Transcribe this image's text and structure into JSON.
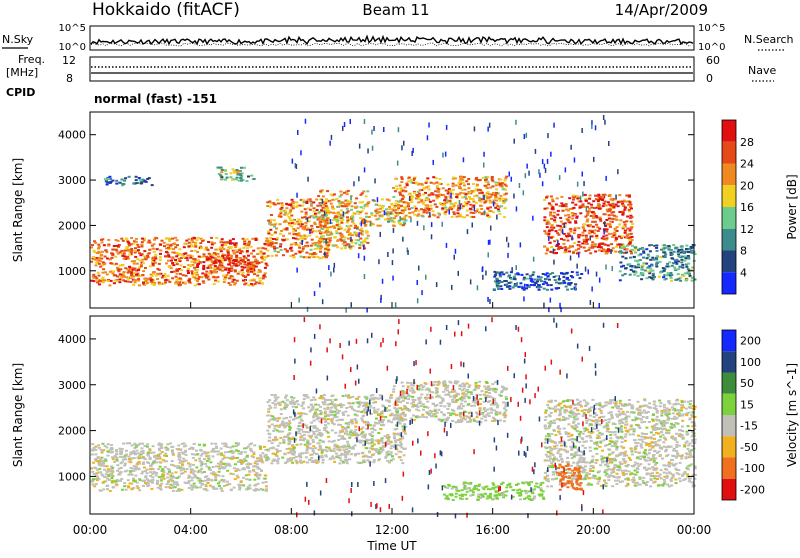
{
  "header": {
    "station": "Hokkaido (fitACF)",
    "beam": "Beam 11",
    "date": "14/Apr/2009"
  },
  "noise_panel": {
    "left_label": "N.Sky",
    "right_label": "N.Search",
    "left_ticks": [
      "10^5",
      "10^0"
    ],
    "right_ticks": [
      "10^5",
      "10^0"
    ]
  },
  "freq_panel": {
    "label_line1": "Freq.",
    "label_line2": "[MHz]",
    "left_ticks": [
      "12",
      "8"
    ],
    "right_ticks": [
      "60",
      "0"
    ],
    "right_label": "Nave",
    "freq_value_mhz": 10.0
  },
  "cpid": {
    "label": "CPID",
    "value": "normal (fast) -151"
  },
  "chart_data": [
    {
      "type": "heatmap",
      "name": "power",
      "xlabel": "",
      "ylabel": "Slant Range [km]",
      "ylim": [
        180,
        4500
      ],
      "xlim_hours": [
        0,
        24
      ],
      "yticks": [
        1000,
        2000,
        3000,
        4000
      ],
      "ytick_labels": [
        "1000",
        "2000",
        "3000",
        "4000"
      ],
      "colorbar": {
        "label": "Power [dB]",
        "ticks": [
          "4",
          "8",
          "12",
          "16",
          "20",
          "24",
          "28"
        ],
        "tick_values": [
          4,
          8,
          12,
          16,
          20,
          24,
          28
        ],
        "range": [
          0,
          30
        ],
        "colors": [
          "#1428ff",
          "#23427e",
          "#3c8c8c",
          "#6ccc8c",
          "#f0d020",
          "#f08a20",
          "#e64a18",
          "#e01010"
        ]
      },
      "regions": [
        {
          "t": [
            0.0,
            7.0
          ],
          "r": [
            700,
            1750
          ],
          "level": 24
        },
        {
          "t": [
            4.5,
            6.7
          ],
          "r": [
            1000,
            1350
          ],
          "level": 28
        },
        {
          "t": [
            7.0,
            9.5
          ],
          "r": [
            1300,
            2600
          ],
          "level": 22
        },
        {
          "t": [
            9.0,
            11.0
          ],
          "r": [
            1500,
            2800
          ],
          "level": 20
        },
        {
          "t": [
            11.0,
            12.5
          ],
          "r": [
            2000,
            2600
          ],
          "level": 18
        },
        {
          "t": [
            12.0,
            16.5
          ],
          "r": [
            2200,
            3100
          ],
          "level": 22
        },
        {
          "t": [
            0.5,
            2.5
          ],
          "r": [
            2900,
            3100
          ],
          "level": 8
        },
        {
          "t": [
            5.0,
            6.5
          ],
          "r": [
            3000,
            3300
          ],
          "level": 14
        },
        {
          "t": [
            18.0,
            21.5
          ],
          "r": [
            1400,
            2700
          ],
          "level": 26
        },
        {
          "t": [
            21.0,
            24.0
          ],
          "r": [
            800,
            1600
          ],
          "level": 10
        },
        {
          "t": [
            16.0,
            19.5
          ],
          "r": [
            600,
            1000
          ],
          "level": 6
        }
      ]
    },
    {
      "type": "heatmap",
      "name": "velocity",
      "xlabel": "Time UT",
      "ylabel": "Slant Range [km]",
      "ylim": [
        180,
        4500
      ],
      "xlim_hours": [
        0,
        24
      ],
      "yticks": [
        1000,
        2000,
        3000,
        4000
      ],
      "ytick_labels": [
        "1000",
        "2000",
        "3000",
        "4000"
      ],
      "xticks_hours": [
        0,
        4,
        8,
        12,
        16,
        20,
        24
      ],
      "xtick_labels": [
        "00:00",
        "04:00",
        "08:00",
        "12:00",
        "16:00",
        "20:00",
        "00:00"
      ],
      "colorbar": {
        "label": "Velocity [m s^-1]",
        "ticks": [
          "200",
          "100",
          "50",
          "15",
          "-15",
          "-50",
          "-100",
          "-200"
        ],
        "tick_values": [
          200,
          100,
          50,
          15,
          -15,
          -50,
          -100,
          -200
        ],
        "colors": [
          "#1428ff",
          "#23427e",
          "#3c8c3c",
          "#7cd23c",
          "#c0c0b8",
          "#f0b020",
          "#f07020",
          "#e01010"
        ]
      },
      "regions": [
        {
          "t": [
            0.0,
            7.0
          ],
          "r": [
            700,
            1750
          ],
          "level": 0
        },
        {
          "t": [
            7.0,
            12.5
          ],
          "r": [
            1300,
            2800
          ],
          "level": 0
        },
        {
          "t": [
            12.0,
            16.5
          ],
          "r": [
            2200,
            3100
          ],
          "level": 0
        },
        {
          "t": [
            18.0,
            24.0
          ],
          "r": [
            800,
            2700
          ],
          "level": 0
        },
        {
          "t": [
            18.5,
            19.5
          ],
          "r": [
            700,
            1300
          ],
          "level": -80
        },
        {
          "t": [
            14.0,
            18.0
          ],
          "r": [
            500,
            900
          ],
          "level": 30
        }
      ]
    }
  ]
}
